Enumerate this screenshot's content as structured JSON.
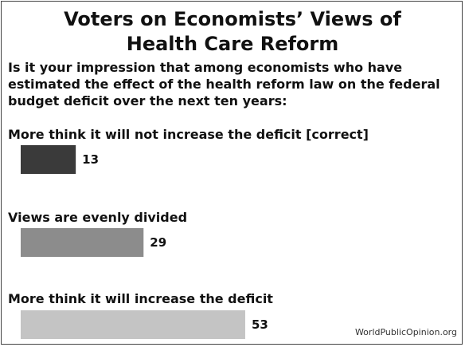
{
  "title_line_1": "Voters on Economists’ Views of",
  "title_line_2": "Health Care Reform",
  "question": "Is it your impression that among economists who have estimated the effect of the health reform law on the federal budget deficit over the next ten years:",
  "source": "WorldPublicOpinion.org",
  "chart_data": {
    "type": "bar",
    "orientation": "horizontal",
    "title": "Voters on Economists’ Views of Health Care Reform",
    "subtitle": "Is it your impression that among economists who have estimated the effect of the health reform law on the federal budget deficit over the next ten years:",
    "categories": [
      "More think it will not increase the deficit [correct]",
      "Views are evenly divided",
      "More think it will increase the deficit"
    ],
    "values": [
      13,
      29,
      53
    ],
    "colors": [
      "#3a3a3a",
      "#8c8c8c",
      "#c4c4c4"
    ],
    "xlim": [
      0,
      100
    ],
    "axes_shown": false,
    "grid": false,
    "legend": "none"
  }
}
